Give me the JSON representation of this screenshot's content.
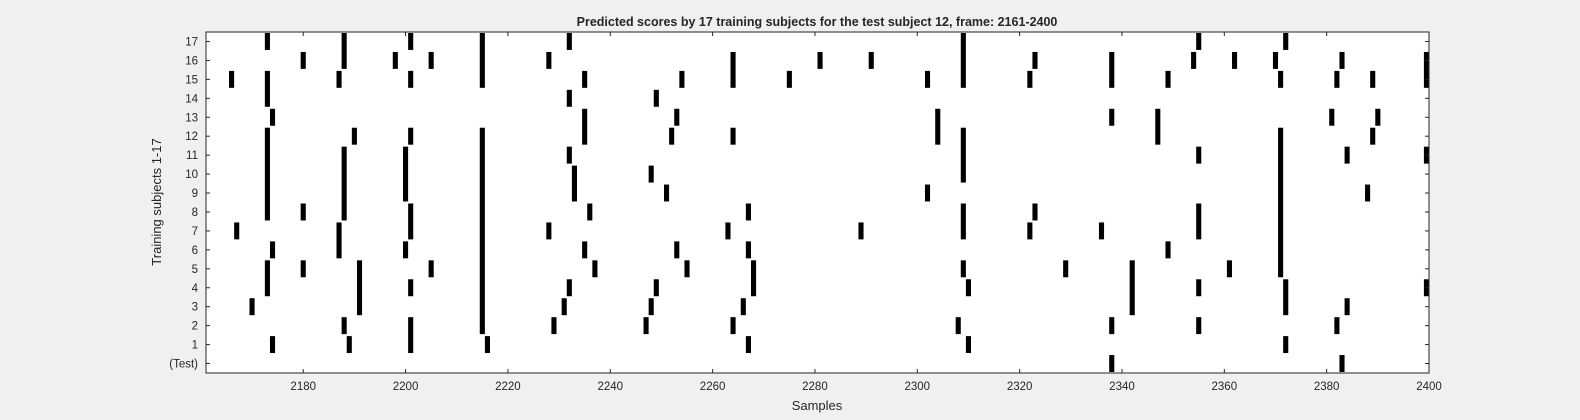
{
  "chart_data": {
    "type": "raster",
    "title": "Predicted scores by 17 training subjects for the test subject 12, frame: 2161-2400",
    "xlabel": "Samples",
    "ylabel": "Training subjects 1-17",
    "xlim": [
      2161,
      2400
    ],
    "x_ticks": [
      2180,
      2200,
      2220,
      2240,
      2260,
      2280,
      2300,
      2320,
      2340,
      2360,
      2380,
      2400
    ],
    "y_tick_labels": [
      "(Test)",
      "1",
      "2",
      "3",
      "4",
      "5",
      "6",
      "7",
      "8",
      "9",
      "10",
      "11",
      "12",
      "13",
      "14",
      "15",
      "16",
      "17"
    ],
    "grid": false,
    "legend": "none",
    "colors": {
      "mark": "#000000",
      "axes_bg": "#ffffff",
      "figure_bg": "#f0f0f0"
    },
    "series": [
      {
        "row": "(Test)",
        "x": [
          2338,
          2383
        ]
      },
      {
        "row": "1",
        "x": [
          2174,
          2189,
          2201,
          2216,
          2267,
          2310,
          2372
        ]
      },
      {
        "row": "2",
        "x": [
          2188,
          2201,
          2215,
          2229,
          2247,
          2264,
          2308,
          2338,
          2355,
          2382
        ]
      },
      {
        "row": "3",
        "x": [
          2170,
          2191,
          2215,
          2231,
          2248,
          2266,
          2342,
          2372,
          2384
        ]
      },
      {
        "row": "4",
        "x": [
          2173,
          2191,
          2201,
          2215,
          2232,
          2249,
          2268,
          2310,
          2342,
          2355,
          2372,
          2400
        ]
      },
      {
        "row": "5",
        "x": [
          2173,
          2180,
          2191,
          2205,
          2215,
          2237,
          2255,
          2268,
          2309,
          2329,
          2342,
          2361,
          2371
        ]
      },
      {
        "row": "6",
        "x": [
          2174,
          2187,
          2200,
          2215,
          2235,
          2253,
          2267,
          2349,
          2371
        ]
      },
      {
        "row": "7",
        "x": [
          2167,
          2187,
          2201,
          2215,
          2228,
          2263,
          2289,
          2309,
          2322,
          2336,
          2355,
          2371
        ]
      },
      {
        "row": "8",
        "x": [
          2173,
          2180,
          2188,
          2201,
          2215,
          2236,
          2267,
          2309,
          2323,
          2355,
          2371
        ]
      },
      {
        "row": "9",
        "x": [
          2173,
          2188,
          2200,
          2215,
          2233,
          2251,
          2302,
          2371,
          2388
        ]
      },
      {
        "row": "10",
        "x": [
          2173,
          2188,
          2200,
          2215,
          2233,
          2248,
          2309,
          2371
        ]
      },
      {
        "row": "11",
        "x": [
          2173,
          2188,
          2200,
          2215,
          2232,
          2309,
          2355,
          2371,
          2384,
          2400
        ]
      },
      {
        "row": "12",
        "x": [
          2173,
          2190,
          2201,
          2215,
          2235,
          2252,
          2264,
          2304,
          2309,
          2347,
          2371,
          2389
        ]
      },
      {
        "row": "13",
        "x": [
          2174,
          2235,
          2253,
          2304,
          2338,
          2347,
          2381,
          2390
        ]
      },
      {
        "row": "14",
        "x": [
          2173,
          2232,
          2249
        ]
      },
      {
        "row": "15",
        "x": [
          2166,
          2173,
          2187,
          2201,
          2215,
          2235,
          2254,
          2264,
          2275,
          2302,
          2309,
          2322,
          2338,
          2349,
          2371,
          2382,
          2389,
          2400
        ]
      },
      {
        "row": "16",
        "x": [
          2180,
          2188,
          2198,
          2205,
          2215,
          2228,
          2264,
          2281,
          2291,
          2309,
          2323,
          2338,
          2354,
          2362,
          2370,
          2383,
          2400
        ]
      },
      {
        "row": "17",
        "x": [
          2173,
          2188,
          2201,
          2215,
          2232,
          2309,
          2355,
          2372
        ]
      }
    ]
  }
}
